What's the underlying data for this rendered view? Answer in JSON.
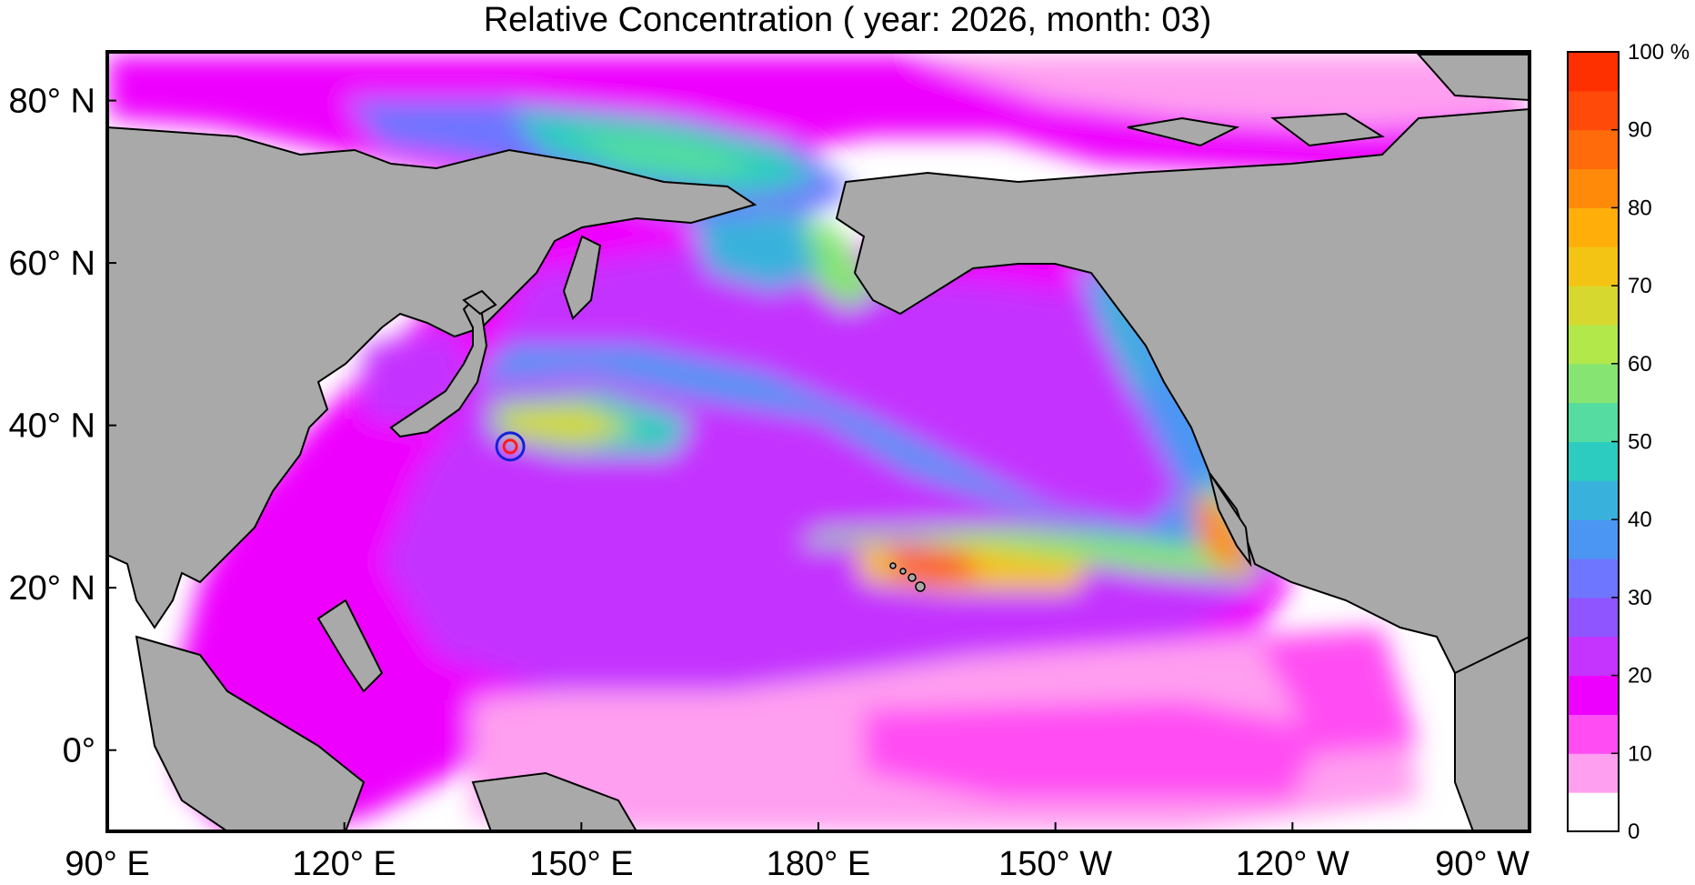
{
  "title": "Relative Concentration ( year: 2026, month: 03)",
  "map": {
    "x_ticks": [
      "90° E",
      "120° E",
      "150° E",
      "180° E",
      "150° W",
      "120° W",
      "90° W"
    ],
    "y_ticks": [
      "80° N",
      "60° N",
      "40° N",
      "20° N",
      "0°"
    ],
    "lon_range": [
      90,
      270
    ],
    "lat_range": [
      -10,
      86
    ],
    "marker": {
      "name": "source-point",
      "lon": 141.0,
      "lat": 37.4
    },
    "land_color": "#a9a9a9"
  },
  "colorbar": {
    "unit": "%",
    "tick_labels": [
      "0",
      "10",
      "20",
      "30",
      "40",
      "50",
      "60",
      "70",
      "80",
      "90",
      "100 %"
    ],
    "colors": [
      "#ffffff",
      "#ff9ff0",
      "#ff4df3",
      "#ee00ff",
      "#c433ff",
      "#8f55ff",
      "#6e75ff",
      "#4b96f3",
      "#38b2dc",
      "#2cccc1",
      "#55dca0",
      "#86e572",
      "#b3e84a",
      "#d7d82f",
      "#f3c414",
      "#ffae0a",
      "#ff8a0a",
      "#ff6a0a",
      "#ff4a0a",
      "#ff3000"
    ]
  }
}
